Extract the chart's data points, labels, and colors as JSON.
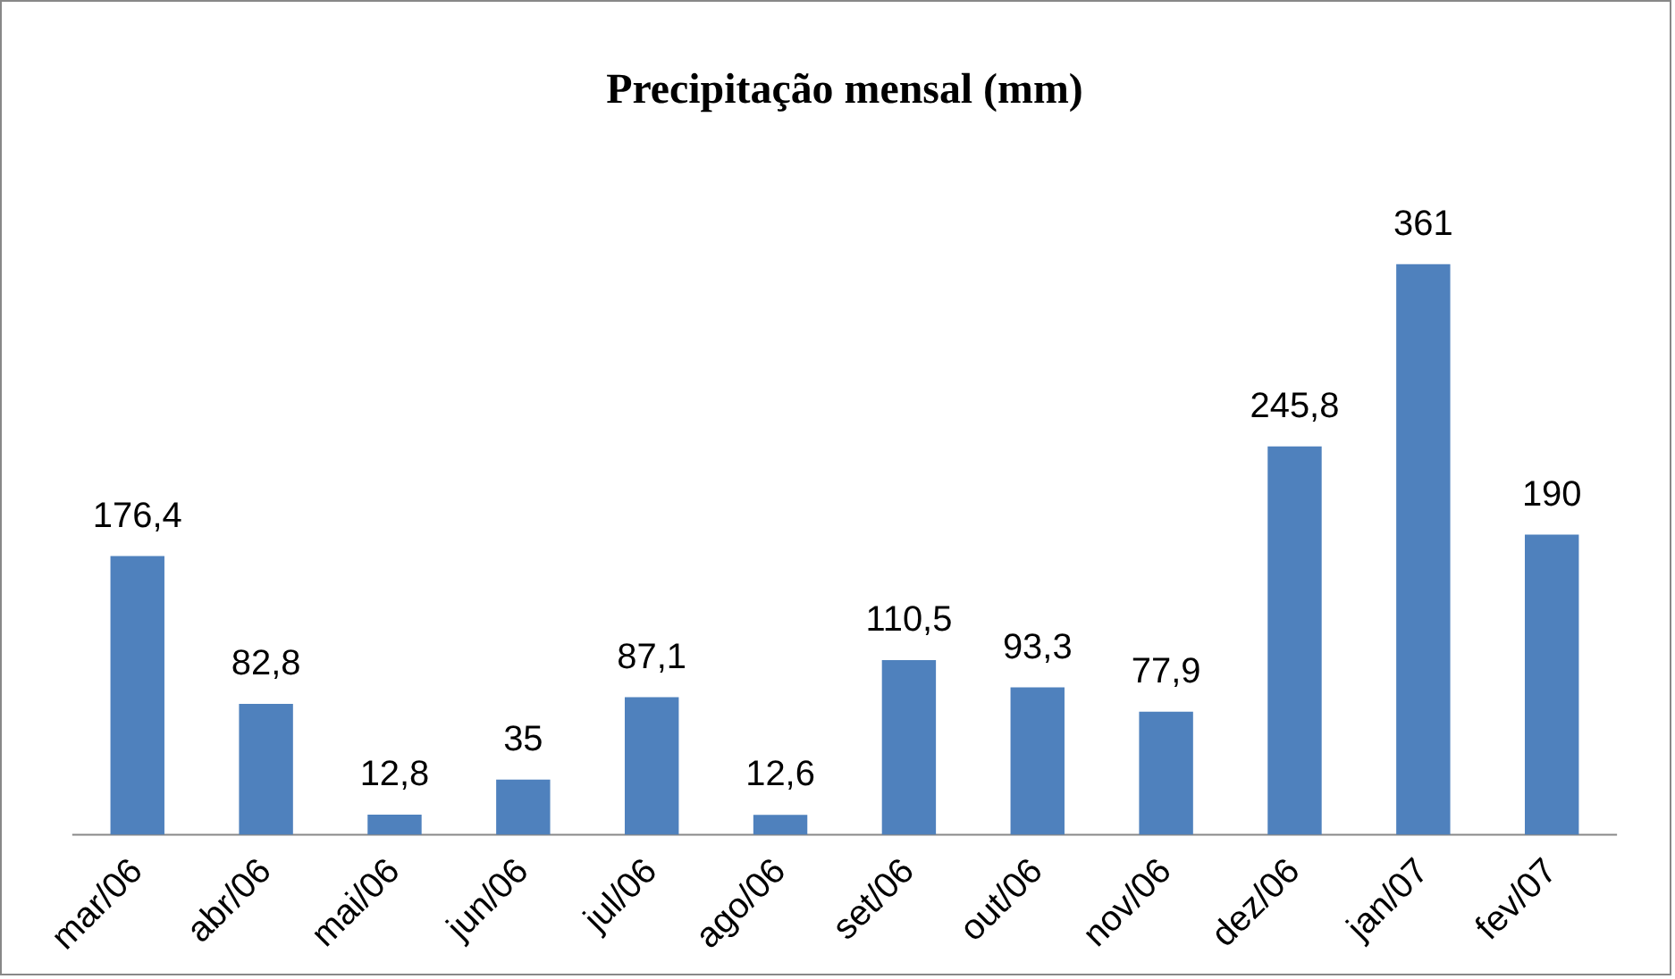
{
  "chart_data": {
    "type": "bar",
    "title": "Precipitação mensal (mm)",
    "categories": [
      "mar/06",
      "abr/06",
      "mai/06",
      "jun/06",
      "jul/06",
      "ago/06",
      "set/06",
      "out/06",
      "nov/06",
      "dez/06",
      "jan/07",
      "fev/07"
    ],
    "values": [
      176.4,
      82.8,
      12.8,
      35,
      87.1,
      12.6,
      110.5,
      93.3,
      77.9,
      245.8,
      361,
      190
    ],
    "value_labels": [
      "176,4",
      "82,8",
      "12,8",
      "35",
      "87,1",
      "12,6",
      "110,5",
      "93,3",
      "77,9",
      "245,8",
      "361",
      "190"
    ],
    "color": "#4f81bd",
    "grid": false,
    "legend": false
  }
}
